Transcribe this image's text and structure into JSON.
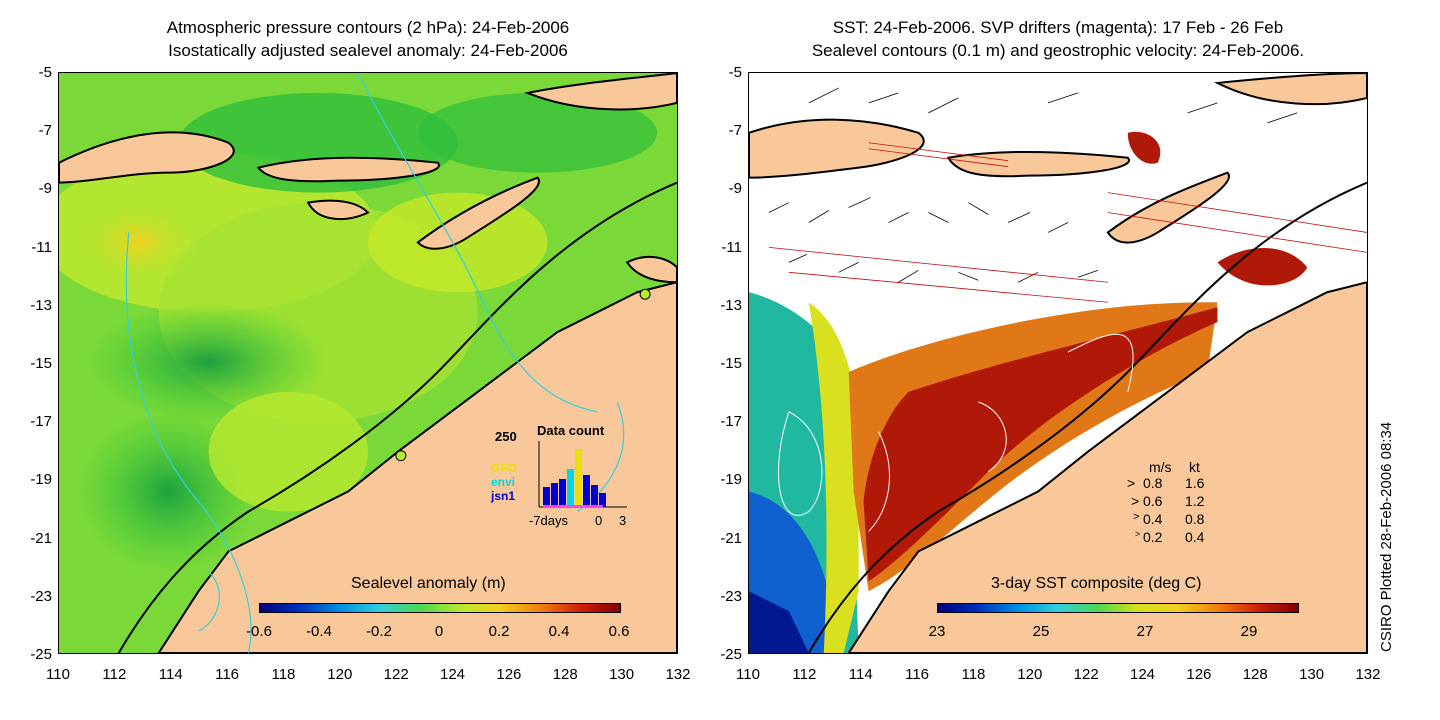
{
  "left_panel": {
    "title_line1": "Atmospheric pressure contours (2 hPa): 24-Feb-2006",
    "title_line2": "Isostatically adjusted sealevel anomaly: 24-Feb-2006",
    "colorbar_title": "Sealevel anomaly (m)",
    "colorbar_ticks": [
      "-0.6",
      "-0.4",
      "-0.2",
      "0",
      "0.2",
      "0.4",
      "0.6"
    ],
    "inset": {
      "max_label": "250",
      "title": "Data count",
      "satellites": [
        {
          "name": "GFO",
          "color": "#e8e000"
        },
        {
          "name": "envi",
          "color": "#00d8e0"
        },
        {
          "name": "jsn1",
          "color": "#0000d0"
        }
      ],
      "axis_labels": [
        "-7days",
        "0",
        "3"
      ]
    }
  },
  "right_panel": {
    "title_line1": "SST: 24-Feb-2006. SVP drifters (magenta): 17 Feb - 26 Feb",
    "title_line2": "Sealevel contours (0.1 m) and geostrophic velocity: 24-Feb-2006.",
    "colorbar_title": "3-day SST composite (deg C)",
    "colorbar_ticks": [
      "23",
      "25",
      "27",
      "29"
    ],
    "velocity_legend": {
      "header_ms": "m/s",
      "header_kt": "kt",
      "rows": [
        {
          "ms": "0.8",
          "kt": "1.6"
        },
        {
          "ms": "0.6",
          "kt": "1.2"
        },
        {
          "ms": "0.4",
          "kt": "0.8"
        },
        {
          "ms": "0.2",
          "kt": "0.4"
        }
      ]
    }
  },
  "axes": {
    "y_ticks": [
      "-5",
      "-7",
      "-9",
      "-11",
      "-13",
      "-15",
      "-17",
      "-19",
      "-21",
      "-23",
      "-25"
    ],
    "x_ticks": [
      "110",
      "112",
      "114",
      "116",
      "118",
      "120",
      "122",
      "124",
      "126",
      "128",
      "130",
      "132"
    ]
  },
  "side_caption": "CSIRO Plotted 28-Feb-2006 08:34",
  "colors": {
    "land": "#f9c89a",
    "ocean_green": "#2ec83a",
    "ocean_yellowgreen": "#b8e830",
    "sst_red": "#b01808",
    "sst_orange": "#e07818",
    "sst_blue": "#1060d0"
  }
}
